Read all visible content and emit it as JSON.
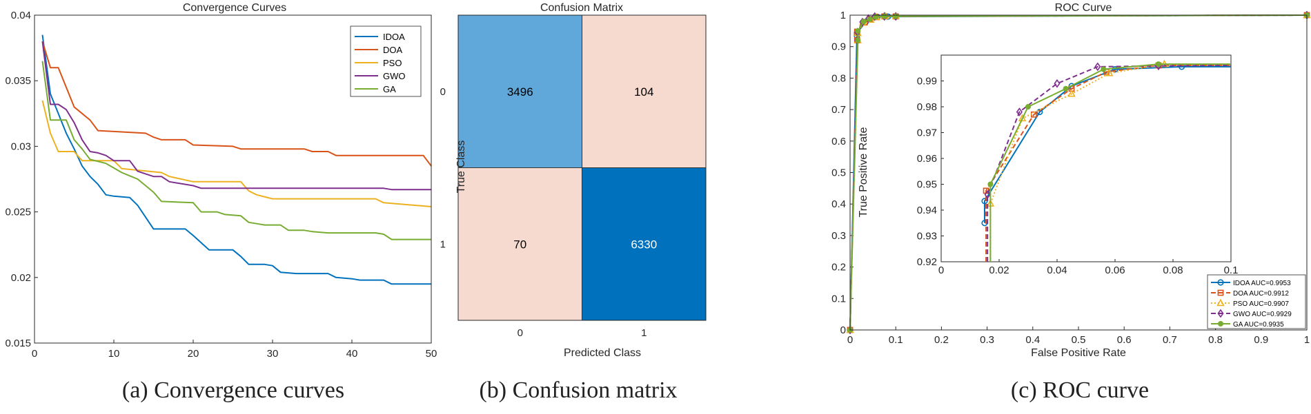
{
  "chart_data": [
    {
      "type": "line",
      "title": "Convergence Curves",
      "caption": "(a) Convergence curves",
      "xlabel": "",
      "ylabel": "",
      "xlim": [
        0,
        50
      ],
      "ylim": [
        0.015,
        0.04
      ],
      "x_ticks": [
        "0",
        "10",
        "20",
        "30",
        "40",
        "50"
      ],
      "y_ticks": [
        "0.015",
        "0.02",
        "0.025",
        "0.03",
        "0.035",
        "0.04"
      ],
      "legend_position": "top-right",
      "colors": {
        "IDOA": "#0072BD",
        "DOA": "#D95319",
        "PSO": "#EDB120",
        "GWO": "#7E2F8E",
        "GA": "#77AC30"
      },
      "series": [
        {
          "name": "IDOA",
          "points": [
            [
              1,
              0.0385
            ],
            [
              2,
              0.034
            ],
            [
              3,
              0.0325
            ],
            [
              4,
              0.031
            ],
            [
              5,
              0.0298
            ],
            [
              6,
              0.0285
            ],
            [
              7,
              0.0277
            ],
            [
              8,
              0.0271
            ],
            [
              9,
              0.0263
            ],
            [
              10,
              0.0262
            ],
            [
              12,
              0.0261
            ],
            [
              13,
              0.0255
            ],
            [
              15,
              0.0237
            ],
            [
              19,
              0.0237
            ],
            [
              20,
              0.0232
            ],
            [
              22,
              0.0221
            ],
            [
              25,
              0.0221
            ],
            [
              26,
              0.0216
            ],
            [
              27,
              0.021
            ],
            [
              29,
              0.021
            ],
            [
              30,
              0.0209
            ],
            [
              31,
              0.0204
            ],
            [
              33,
              0.0203
            ],
            [
              37,
              0.0203
            ],
            [
              38,
              0.02
            ],
            [
              40,
              0.0199
            ],
            [
              41,
              0.0198
            ],
            [
              44,
              0.0198
            ],
            [
              45,
              0.0195
            ],
            [
              50,
              0.0195
            ]
          ]
        },
        {
          "name": "DOA",
          "points": [
            [
              1,
              0.038
            ],
            [
              2,
              0.036
            ],
            [
              3,
              0.036
            ],
            [
              4,
              0.0345
            ],
            [
              5,
              0.033
            ],
            [
              6,
              0.0325
            ],
            [
              7,
              0.032
            ],
            [
              8,
              0.0312
            ],
            [
              14,
              0.031
            ],
            [
              15,
              0.0307
            ],
            [
              16,
              0.0305
            ],
            [
              19,
              0.0305
            ],
            [
              20,
              0.0301
            ],
            [
              25,
              0.03
            ],
            [
              26,
              0.0298
            ],
            [
              34,
              0.0298
            ],
            [
              35,
              0.0296
            ],
            [
              37,
              0.0296
            ],
            [
              38,
              0.0293
            ],
            [
              49,
              0.0293
            ],
            [
              50,
              0.0285
            ]
          ]
        },
        {
          "name": "PSO",
          "points": [
            [
              1,
              0.0335
            ],
            [
              2,
              0.031
            ],
            [
              3,
              0.0296
            ],
            [
              5,
              0.0296
            ],
            [
              6,
              0.0289
            ],
            [
              10,
              0.0289
            ],
            [
              11,
              0.0283
            ],
            [
              16,
              0.028
            ],
            [
              17,
              0.0277
            ],
            [
              20,
              0.0273
            ],
            [
              26,
              0.0273
            ],
            [
              27,
              0.0266
            ],
            [
              28,
              0.0263
            ],
            [
              30,
              0.026
            ],
            [
              43,
              0.026
            ],
            [
              44,
              0.0257
            ],
            [
              50,
              0.0254
            ]
          ]
        },
        {
          "name": "GWO",
          "points": [
            [
              1,
              0.038
            ],
            [
              2,
              0.0332
            ],
            [
              3,
              0.0332
            ],
            [
              4,
              0.0328
            ],
            [
              5,
              0.0318
            ],
            [
              6,
              0.0305
            ],
            [
              7,
              0.0296
            ],
            [
              8,
              0.0295
            ],
            [
              9,
              0.0293
            ],
            [
              10,
              0.0289
            ],
            [
              12,
              0.0289
            ],
            [
              13,
              0.0281
            ],
            [
              14,
              0.0279
            ],
            [
              15,
              0.0277
            ],
            [
              16,
              0.0277
            ],
            [
              17,
              0.0273
            ],
            [
              20,
              0.027
            ],
            [
              21,
              0.0268
            ],
            [
              44,
              0.0268
            ],
            [
              45,
              0.0267
            ],
            [
              50,
              0.0267
            ]
          ]
        },
        {
          "name": "GA",
          "points": [
            [
              1,
              0.0365
            ],
            [
              2,
              0.032
            ],
            [
              4,
              0.032
            ],
            [
              5,
              0.0305
            ],
            [
              6,
              0.0298
            ],
            [
              7,
              0.029
            ],
            [
              9,
              0.0287
            ],
            [
              11,
              0.028
            ],
            [
              13,
              0.0275
            ],
            [
              14,
              0.027
            ],
            [
              15,
              0.0265
            ],
            [
              16,
              0.0258
            ],
            [
              20,
              0.0257
            ],
            [
              21,
              0.025
            ],
            [
              23,
              0.025
            ],
            [
              24,
              0.0248
            ],
            [
              26,
              0.0247
            ],
            [
              27,
              0.0242
            ],
            [
              28,
              0.0241
            ],
            [
              29,
              0.024
            ],
            [
              31,
              0.024
            ],
            [
              32,
              0.0236
            ],
            [
              34,
              0.0236
            ],
            [
              35,
              0.0235
            ],
            [
              37,
              0.0234
            ],
            [
              43,
              0.0234
            ],
            [
              44,
              0.0233
            ],
            [
              45,
              0.0229
            ],
            [
              50,
              0.0229
            ]
          ]
        }
      ]
    },
    {
      "type": "heatmap",
      "title": "Confusion Matrix",
      "caption": "(b) Confusion matrix",
      "xlabel": "Predicted Class",
      "ylabel": "True Class",
      "x_categories": [
        "0",
        "1"
      ],
      "y_categories": [
        "0",
        "1"
      ],
      "values": [
        [
          3496,
          104
        ],
        [
          70,
          6330
        ]
      ],
      "colors": {
        "diag_high": "#0072BD",
        "diag_low": "#60A8DA",
        "off_diag": "#F6DAD0",
        "text_light": "#ffffff",
        "text_dark": "#000000"
      }
    },
    {
      "type": "line",
      "title": "ROC Curve",
      "caption": "(c) ROC curve",
      "xlabel": "False Positive Rate",
      "ylabel": "True Positive Rate",
      "xlim": [
        0,
        1
      ],
      "ylim": [
        0,
        1
      ],
      "x_ticks": [
        "0",
        "0.1",
        "0.2",
        "0.3",
        "0.4",
        "0.5",
        "0.6",
        "0.7",
        "0.8",
        "0.9",
        "1"
      ],
      "y_ticks": [
        "0",
        "0.1",
        "0.2",
        "0.3",
        "0.4",
        "0.5",
        "0.6",
        "0.7",
        "0.8",
        "0.9",
        "1"
      ],
      "legend_position": "bottom-right",
      "series": [
        {
          "name": "IDOA AUC=0.9953",
          "color": "#0072BD",
          "marker": "circle",
          "dash": "solid",
          "points": [
            [
              0,
              0
            ],
            [
              0.015,
              0.935
            ],
            [
              0.015,
              0.9435
            ],
            [
              0.034,
              0.978
            ],
            [
              0.045,
              0.988
            ],
            [
              0.06,
              0.9945
            ],
            [
              0.083,
              0.9955
            ],
            [
              0.1,
              0.9955
            ],
            [
              1,
              1
            ]
          ]
        },
        {
          "name": "DOA AUC=0.9912",
          "color": "#D95319",
          "marker": "square",
          "dash": "dash",
          "points": [
            [
              0,
              0
            ],
            [
              0.0155,
              0.92
            ],
            [
              0.0155,
              0.9475
            ],
            [
              0.032,
              0.977
            ],
            [
              0.045,
              0.987
            ],
            [
              0.057,
              0.9935
            ],
            [
              0.075,
              0.996
            ],
            [
              0.1,
              0.996
            ],
            [
              1,
              1
            ]
          ]
        },
        {
          "name": "PSO AUC=0.9907",
          "color": "#EDB120",
          "marker": "triangle",
          "dash": "dot",
          "points": [
            [
              0,
              0
            ],
            [
              0.017,
              0.92
            ],
            [
              0.017,
              0.9425
            ],
            [
              0.028,
              0.9755
            ],
            [
              0.045,
              0.985
            ],
            [
              0.058,
              0.993
            ],
            [
              0.077,
              0.9965
            ],
            [
              0.1,
              0.9965
            ],
            [
              1,
              1
            ]
          ]
        },
        {
          "name": "GWO AUC=0.9929",
          "color": "#7E2F8E",
          "marker": "diamond",
          "dash": "dash",
          "points": [
            [
              0,
              0
            ],
            [
              0.016,
              0.92
            ],
            [
              0.016,
              0.946
            ],
            [
              0.027,
              0.978
            ],
            [
              0.04,
              0.989
            ],
            [
              0.054,
              0.9955
            ],
            [
              0.075,
              0.9958
            ],
            [
              0.1,
              0.996
            ],
            [
              1,
              1
            ]
          ]
        },
        {
          "name": "GA AUC=0.9935",
          "color": "#77AC30",
          "marker": "dot",
          "dash": "solid",
          "points": [
            [
              0,
              0
            ],
            [
              0.017,
              0.92
            ],
            [
              0.017,
              0.95
            ],
            [
              0.03,
              0.98
            ],
            [
              0.043,
              0.987
            ],
            [
              0.056,
              0.9945
            ],
            [
              0.075,
              0.9965
            ],
            [
              0.1,
              0.9965
            ],
            [
              1,
              1
            ]
          ]
        }
      ],
      "inset": {
        "xlim": [
          0,
          0.1
        ],
        "ylim": [
          0.92,
          1.0
        ],
        "x_ticks": [
          "0",
          "0.02",
          "0.04",
          "0.06",
          "0.08",
          "0.1"
        ],
        "y_ticks": [
          "0.92",
          "0.93",
          "0.94",
          "0.95",
          "0.96",
          "0.97",
          "0.98",
          "0.99"
        ]
      }
    }
  ]
}
